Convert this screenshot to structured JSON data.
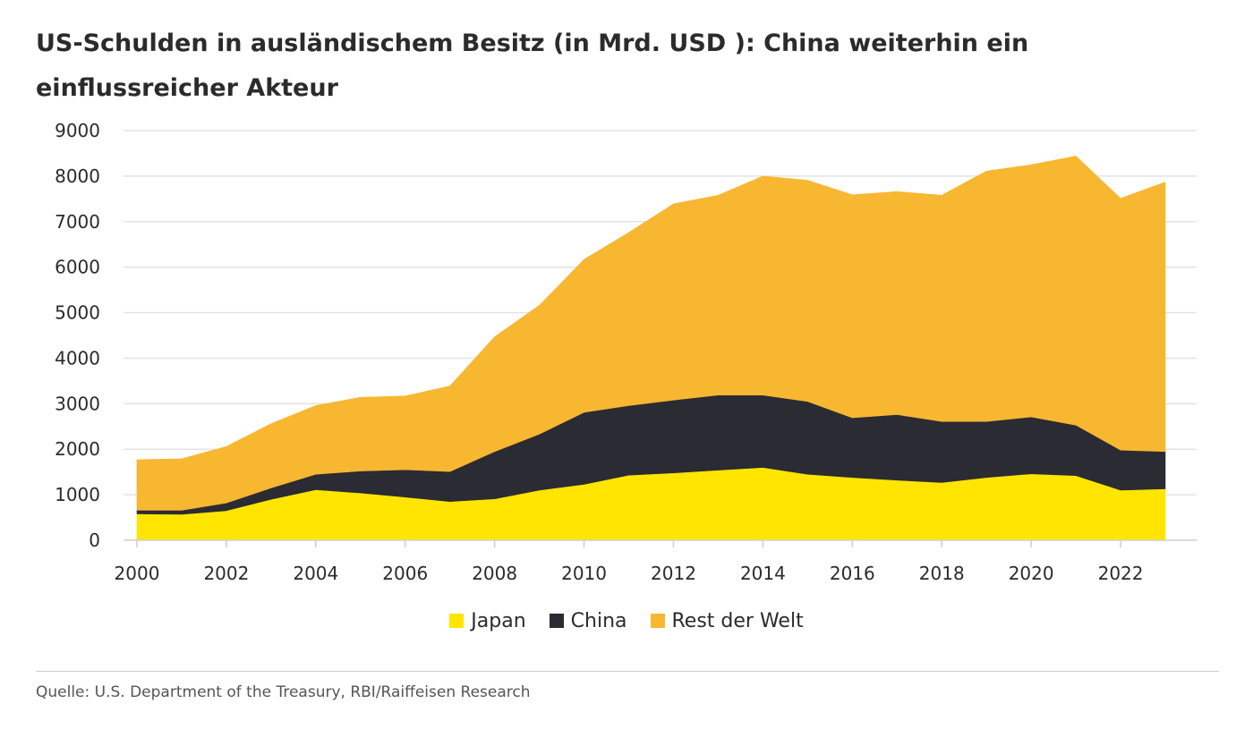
{
  "title": "US-Schulden in ausländischem Besitz (in Mrd. USD ): China weiterhin ein einflussreicher Akteur",
  "source": "Quelle: U.S. Department of the Treasury, RBI/Raiffeisen Research",
  "colors": {
    "japan": "#FFE500",
    "china": "#2B2B33",
    "rest": "#F8B731",
    "grid": "#E3E3E3"
  },
  "chart_data": {
    "type": "area",
    "stacked": true,
    "title": "US-Schulden in ausländischem Besitz (in Mrd. USD ): China weiterhin ein einflussreicher Akteur",
    "x": [
      2000,
      2001,
      2002,
      2003,
      2004,
      2005,
      2006,
      2007,
      2008,
      2009,
      2010,
      2011,
      2012,
      2013,
      2014,
      2015,
      2016,
      2017,
      2018,
      2019,
      2020,
      2021,
      2022,
      2023
    ],
    "x_ticks": [
      "2000",
      "2002",
      "2004",
      "2006",
      "2008",
      "2010",
      "2012",
      "2014",
      "2016",
      "2018",
      "2020",
      "2022"
    ],
    "y_ticks": [
      "0",
      "1000",
      "2000",
      "3000",
      "4000",
      "5000",
      "6000",
      "7000",
      "8000",
      "9000"
    ],
    "ylim": [
      0,
      9000
    ],
    "grid": true,
    "legend_position": "bottom",
    "series": [
      {
        "name": "Japan",
        "values": [
          580,
          570,
          650,
          900,
          1110,
          1040,
          950,
          850,
          910,
          1100,
          1230,
          1430,
          1480,
          1540,
          1600,
          1450,
          1380,
          1320,
          1270,
          1380,
          1460,
          1420,
          1100,
          1130
        ]
      },
      {
        "name": "China",
        "values": [
          80,
          90,
          170,
          250,
          340,
          480,
          600,
          660,
          1040,
          1230,
          1580,
          1530,
          1600,
          1650,
          1590,
          1600,
          1310,
          1440,
          1340,
          1230,
          1250,
          1110,
          880,
          820
        ]
      },
      {
        "name": "Rest der Welt",
        "values": [
          1110,
          1130,
          1240,
          1410,
          1510,
          1620,
          1620,
          1880,
          2520,
          2830,
          3360,
          3800,
          4310,
          4390,
          4810,
          4860,
          4900,
          4900,
          4970,
          5500,
          5540,
          5910,
          5530,
          5920
        ]
      }
    ]
  }
}
